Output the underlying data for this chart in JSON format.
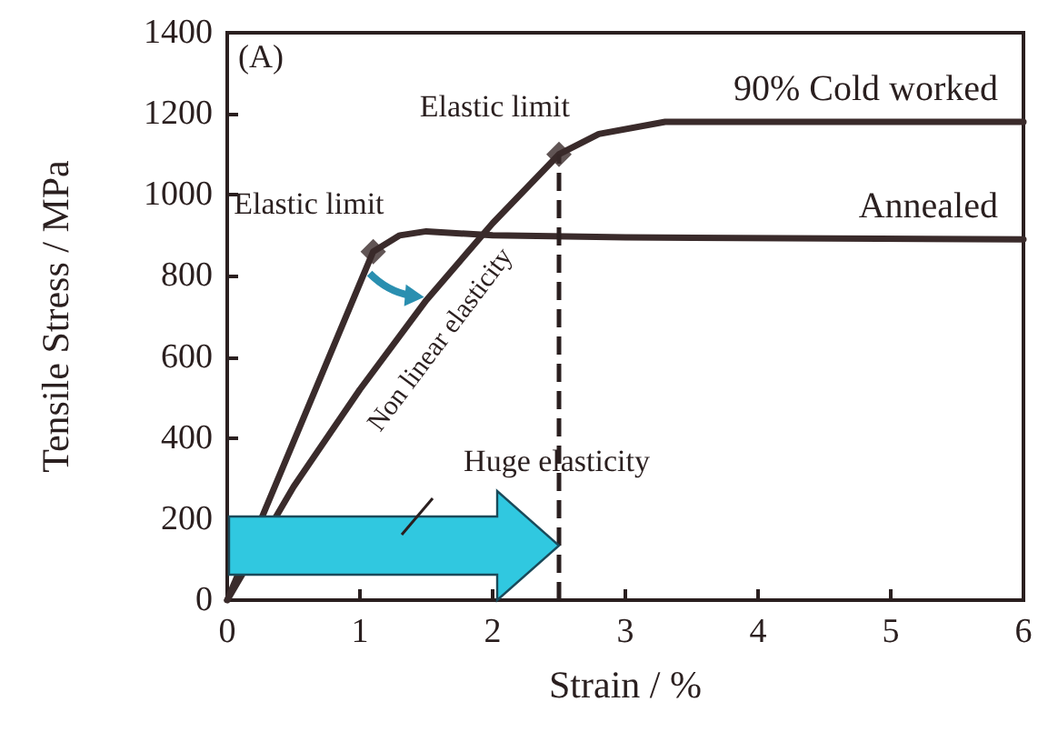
{
  "chart_data": {
    "type": "line",
    "xlabel": "Strain / %",
    "ylabel": "Tensile Stress / MPa",
    "xlim": [
      0,
      6
    ],
    "xticks": [
      0,
      1,
      2,
      3,
      4,
      5,
      6
    ],
    "ylim": [
      0,
      1400
    ],
    "yticks": [
      0,
      200,
      400,
      600,
      800,
      1000,
      1200,
      1400
    ],
    "grid": false,
    "legend": false,
    "marker": "none",
    "line_style": "solid",
    "series": [
      {
        "name": "90% Cold worked",
        "color": "#3a2b2b",
        "x": [
          0,
          0.5,
          1,
          1.5,
          2,
          2.5,
          2.8,
          3.3,
          6
        ],
        "values": [
          0,
          280,
          520,
          740,
          930,
          1100,
          1150,
          1180,
          1180
        ]
      },
      {
        "name": "Annealed",
        "color": "#3a2b2b",
        "x": [
          0,
          1.1,
          1.3,
          1.5,
          2,
          3,
          6
        ],
        "values": [
          0,
          860,
          900,
          910,
          900,
          895,
          890
        ]
      },
      {
        "type": "scatter",
        "marker": "diamond",
        "color": "#3a2b2b",
        "x": [
          1.1,
          2.5
        ],
        "values": [
          860,
          1100
        ]
      }
    ],
    "ref_lines": [
      {
        "axis": "x",
        "value": 2.5,
        "color": "#2a1f1f",
        "line_style": "dashed"
      }
    ],
    "annotations": [
      "(A)",
      {
        "text": "Elastic limit",
        "x": 1.1,
        "y": 860
      },
      {
        "text": "Elastic limit",
        "x": 2.5,
        "y": 1100
      },
      "Non linear elasticity",
      "Huge elasticity"
    ]
  }
}
